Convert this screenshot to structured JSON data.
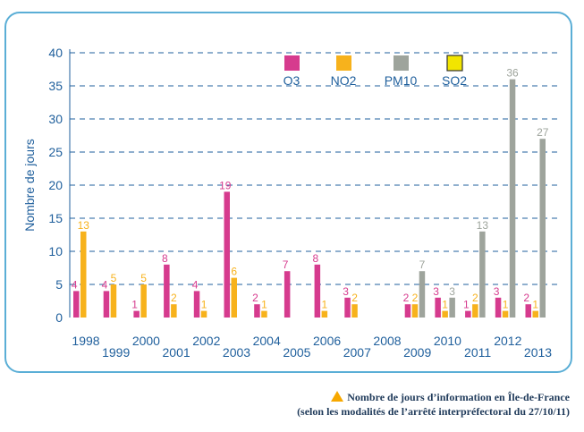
{
  "chart_data": {
    "type": "bar",
    "ylabel": "Nombre de jours",
    "xlabel": "",
    "ylim": [
      0,
      40
    ],
    "yticks": [
      0,
      5,
      10,
      15,
      20,
      25,
      30,
      35,
      40
    ],
    "grid": true,
    "legend_position": "top",
    "categories": [
      "1998",
      "1999",
      "2000",
      "2001",
      "2002",
      "2003",
      "2004",
      "2005",
      "2006",
      "2007",
      "2008",
      "2009",
      "2010",
      "2011",
      "2012",
      "2013"
    ],
    "series": [
      {
        "name": "O3",
        "color": "#d63b8e",
        "values": [
          4,
          4,
          1,
          8,
          4,
          19,
          2,
          7,
          8,
          3,
          0,
          2,
          3,
          1,
          3,
          2
        ],
        "labels": [
          "4",
          "4",
          "1",
          "8",
          "4",
          "19",
          "2",
          "7",
          "8",
          "3",
          "",
          "2",
          "3",
          "1",
          "3",
          "2"
        ]
      },
      {
        "name": "NO2",
        "color": "#f7b21c",
        "values": [
          13,
          5,
          5,
          2,
          1,
          6,
          1,
          0,
          1,
          2,
          0,
          2,
          1,
          2,
          1,
          1
        ],
        "labels": [
          "13",
          "5",
          "5",
          "2",
          "1",
          "6",
          "1",
          "",
          "1",
          "2",
          "",
          "2",
          "1",
          "2",
          "1",
          "1"
        ]
      },
      {
        "name": "PM10",
        "color": "#9ea49c",
        "values": [
          0,
          0,
          0,
          0,
          0,
          0,
          0,
          0,
          0,
          0,
          0,
          7,
          3,
          13,
          36,
          27
        ],
        "labels": [
          "",
          "",
          "",
          "",
          "",
          "",
          "",
          "",
          "",
          "",
          "",
          "7",
          "3",
          "13",
          "36",
          "27"
        ]
      },
      {
        "name": "SO2",
        "color": "#f2e500",
        "values": [
          0,
          0,
          0,
          0,
          0,
          0,
          0,
          0,
          0,
          0,
          0,
          0,
          0,
          0,
          0,
          0
        ],
        "labels": [
          "",
          "",
          "",
          "",
          "",
          "",
          "",
          "",
          "",
          "",
          "",
          "",
          "",
          "",
          "",
          ""
        ]
      }
    ]
  },
  "caption": {
    "line1": "Nombre de jours d’information en Île-de-France",
    "line2": "(selon les modalités de l’arrêté interpréfectoral du 27/10/11)"
  },
  "colors": {
    "frame": "#5aaed6",
    "axis_text": "#1f5f9c",
    "grid": "#1f5f9c",
    "triangle": "#f7a800"
  }
}
